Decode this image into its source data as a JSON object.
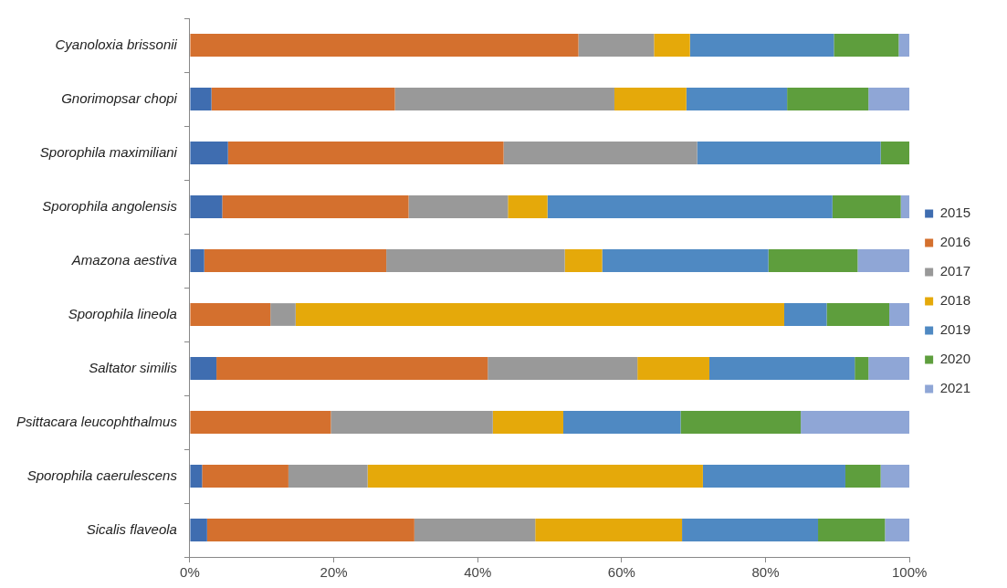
{
  "chart_data": {
    "type": "bar",
    "orientation": "horizontal",
    "stacked": true,
    "grid": false,
    "legend": "right",
    "categories": [
      "Cyanoloxia brissonii",
      "Gnorimopsar chopi",
      "Sporophila maximiliani",
      "Sporophila angolensis",
      "Amazona aestiva",
      "Sporophila lineola",
      "Saltator similis",
      "Psittacara leucophthalmus",
      "Sporophila caerulescens",
      "Sicalis flaveola"
    ],
    "xlim": [
      0,
      100
    ],
    "xticks": [
      {
        "value": 0,
        "label": "0%"
      },
      {
        "value": 20,
        "label": "20%"
      },
      {
        "value": 40,
        "label": "40%"
      },
      {
        "value": 60,
        "label": "60%"
      },
      {
        "value": 80,
        "label": "80%"
      },
      {
        "value": 100,
        "label": "100%"
      }
    ],
    "series": [
      {
        "name": "2015",
        "color": "#3f6db0",
        "values": [
          0,
          3.0,
          5.3,
          4.5,
          2.0,
          0,
          3.7,
          0,
          1.7,
          2.4
        ]
      },
      {
        "name": "2016",
        "color": "#d4702e",
        "values": [
          54,
          25.5,
          38.3,
          25.9,
          25.3,
          11.2,
          37.7,
          19.6,
          12.0,
          28.8
        ]
      },
      {
        "name": "2017",
        "color": "#999999",
        "values": [
          10.5,
          30.5,
          26.9,
          13.8,
          24.8,
          3.5,
          20.8,
          22.5,
          11.0,
          16.8
        ]
      },
      {
        "name": "2018",
        "color": "#e5a90a",
        "values": [
          5,
          10,
          0,
          5.5,
          5.2,
          67.9,
          10,
          9.8,
          46.6,
          20.4
        ]
      },
      {
        "name": "2019",
        "color": "#4f89c2",
        "values": [
          20,
          14,
          25.5,
          39.6,
          23.1,
          5.9,
          20.2,
          16.3,
          19.8,
          18.9
        ]
      },
      {
        "name": "2020",
        "color": "#5e9e3d",
        "values": [
          9,
          11.3,
          4,
          9.5,
          12.4,
          8.7,
          1.9,
          16.7,
          4.9,
          9.3
        ]
      },
      {
        "name": "2021",
        "color": "#8fa6d6",
        "values": [
          1.5,
          5.7,
          0,
          1.2,
          7.2,
          2.8,
          5.7,
          15.1,
          4.0,
          3.4
        ]
      }
    ]
  }
}
